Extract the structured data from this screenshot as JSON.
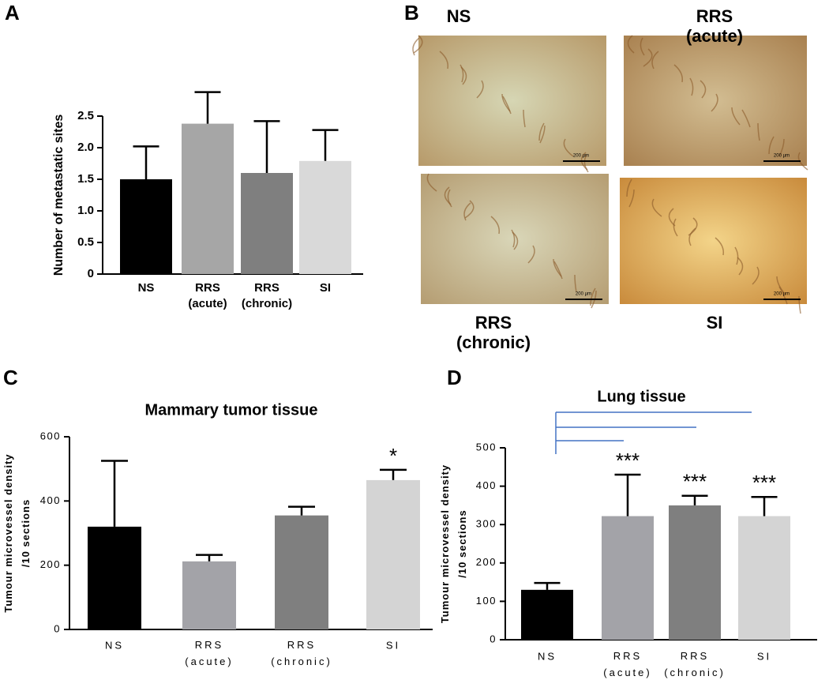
{
  "panel_labels": [
    "A",
    "B",
    "C",
    "D"
  ],
  "micrographs": {
    "labels": [
      "NS",
      "RRS\n(acute)",
      "RRS\n(chronic)",
      "SI"
    ],
    "scale_label": "200 µm"
  },
  "chart_data": [
    {
      "type": "bar",
      "y_label": "Number of metastatic sites",
      "categories": [
        "NS",
        "RRS\n(acute)",
        "RRS\n(chronic)",
        "SI"
      ],
      "values": [
        1.5,
        2.38,
        1.6,
        1.79
      ],
      "errors": [
        0.52,
        0.5,
        0.82,
        0.49
      ],
      "colors": [
        "#000000",
        "#a6a6a6",
        "#7f7f7f",
        "#d9d9d9"
      ],
      "ylim": [
        0,
        2.5
      ],
      "yticks": [
        0,
        0.5,
        {
          "value": 1,
          "label": "1.0"
        },
        1.5,
        {
          "value": 2,
          "label": "2.0"
        },
        2.5
      ]
    },
    {
      "type": "bar",
      "title": "Mammary tumor tissue",
      "y_label": "Tumour microvessel density\n/10 sections",
      "categories": [
        "NS",
        "RRS\n(acute)",
        "RRS\n(chronic)",
        "SI"
      ],
      "values": [
        320,
        212,
        355,
        465
      ],
      "errors": [
        205,
        20,
        27,
        32
      ],
      "significance": [
        null,
        null,
        null,
        "*"
      ],
      "colors": [
        "#000000",
        "#a3a3a8",
        "#7f7f7f",
        "#d4d4d4"
      ],
      "ylim": [
        0,
        600
      ],
      "yticks": [
        0,
        200,
        400,
        600
      ]
    },
    {
      "type": "bar",
      "title": "Lung tissue",
      "y_label": "Tumour microvessel density\n/10 sections",
      "categories": [
        "NS",
        "RRS\n(acute)",
        "RRS\n(chronic)",
        "SI"
      ],
      "values": [
        130,
        322,
        350,
        322
      ],
      "errors": [
        18,
        108,
        25,
        50
      ],
      "significance": [
        null,
        "***",
        "***",
        "***"
      ],
      "colors": [
        "#000000",
        "#a3a3a8",
        "#7f7f7f",
        "#d4d4d4"
      ],
      "ylim": [
        0,
        500
      ],
      "yticks": [
        0,
        100,
        200,
        300,
        400,
        500
      ]
    }
  ]
}
